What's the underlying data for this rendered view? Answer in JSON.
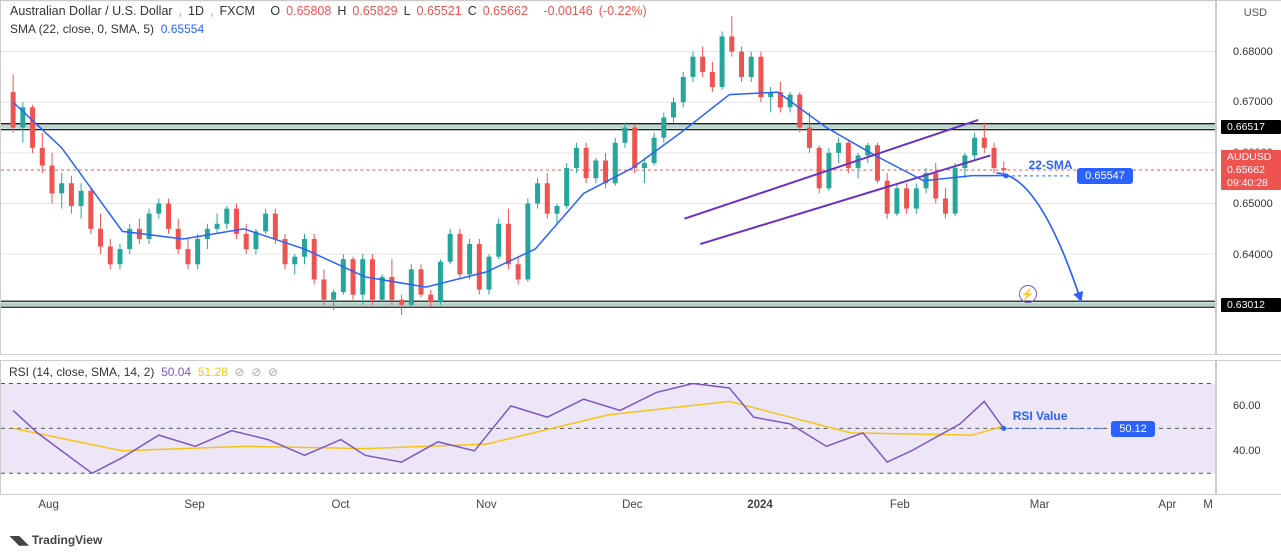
{
  "header": {
    "title": "Australian Dollar / U.S. Dollar",
    "timeframe": "1D",
    "source": "FXCM",
    "open_label": "O",
    "open": "0.65808",
    "high_label": "H",
    "high": "0.65829",
    "low_label": "L",
    "low": "0.65521",
    "close_label": "C",
    "close": "0.65662",
    "change": "-0.00146",
    "change_pct": "(-0.22%)",
    "color_neg": "#ef5350",
    "color_title": "#333333"
  },
  "sma": {
    "label": "SMA (22, close, 0, SMA, 5)",
    "value": "0.65554",
    "color": "#2962ff"
  },
  "rsi": {
    "label": "RSI (14, close, SMA, 14, 2)",
    "val1": "50.04",
    "val2": "51.28",
    "band_fill": "#ece6f7",
    "line_color": "#7e57c2",
    "signal_color": "#f5c518",
    "upper": 70,
    "lower": 30,
    "mid": 50,
    "yticks": [
      40,
      60
    ],
    "anno_text": "RSI Value",
    "anno_badge": "50.12"
  },
  "price_pane": {
    "ymin": 0.62,
    "ymax": 0.69,
    "grid_step": 0.01,
    "yticks": [
      0.64,
      0.65,
      0.66,
      0.67,
      0.68
    ],
    "y_label": "USD",
    "last_price": "0.65662",
    "last_price_color": "#ef5350",
    "ticker_badge": "AUDUSD",
    "ticker_badge_color": "#ef5350",
    "countdown": "09:40:28",
    "countdown_bg": "#ef5350",
    "hlines": [
      {
        "value": 0.66517,
        "label": "0.66517",
        "color": "#3a8f7a"
      },
      {
        "value": 0.63012,
        "label": "0.63012",
        "color": "#3a8f7a"
      }
    ],
    "sma_badge": {
      "value": 0.65547,
      "label": "0.65547",
      "color": "#2962ff",
      "text": "22-SMA"
    },
    "channels": {
      "upper": [
        [
          0.563,
          0.647
        ],
        [
          0.805,
          0.6665
        ]
      ],
      "lower": [
        [
          0.576,
          0.642
        ],
        [
          0.815,
          0.6595
        ]
      ],
      "color": "#6a33c2"
    },
    "arrow": {
      "from": [
        0.82,
        0.656
      ],
      "to": [
        0.89,
        0.6305
      ],
      "color": "#2962ff"
    }
  },
  "x_axis": {
    "ticks": [
      {
        "pos": 0.04,
        "label": "Aug"
      },
      {
        "pos": 0.16,
        "label": "Sep"
      },
      {
        "pos": 0.28,
        "label": "Oct"
      },
      {
        "pos": 0.4,
        "label": "Nov"
      },
      {
        "pos": 0.52,
        "label": "Dec"
      },
      {
        "pos": 0.625,
        "label": "2024",
        "bold": true
      },
      {
        "pos": 0.74,
        "label": "Feb"
      },
      {
        "pos": 0.855,
        "label": "Mar"
      },
      {
        "pos": 0.96,
        "label": "Apr"
      }
    ],
    "end_label": "M"
  },
  "watermark": "TradingView",
  "colors": {
    "up": "#26a69a",
    "down": "#ef5350",
    "grid": "#e6e6e6",
    "sma_line": "#2962ff"
  },
  "candles": [
    {
      "x": 0.01,
      "o": 0.672,
      "h": 0.6755,
      "l": 0.664,
      "c": 0.665
    },
    {
      "x": 0.018,
      "o": 0.665,
      "h": 0.67,
      "l": 0.662,
      "c": 0.669
    },
    {
      "x": 0.026,
      "o": 0.669,
      "h": 0.6695,
      "l": 0.66,
      "c": 0.661
    },
    {
      "x": 0.034,
      "o": 0.661,
      "h": 0.664,
      "l": 0.656,
      "c": 0.6575
    },
    {
      "x": 0.042,
      "o": 0.6575,
      "h": 0.66,
      "l": 0.65,
      "c": 0.652
    },
    {
      "x": 0.05,
      "o": 0.652,
      "h": 0.656,
      "l": 0.649,
      "c": 0.654
    },
    {
      "x": 0.058,
      "o": 0.654,
      "h": 0.6555,
      "l": 0.648,
      "c": 0.6495
    },
    {
      "x": 0.066,
      "o": 0.6495,
      "h": 0.654,
      "l": 0.647,
      "c": 0.6525
    },
    {
      "x": 0.074,
      "o": 0.6525,
      "h": 0.653,
      "l": 0.644,
      "c": 0.645
    },
    {
      "x": 0.082,
      "o": 0.645,
      "h": 0.648,
      "l": 0.64,
      "c": 0.6415
    },
    {
      "x": 0.09,
      "o": 0.6415,
      "h": 0.643,
      "l": 0.637,
      "c": 0.638
    },
    {
      "x": 0.098,
      "o": 0.638,
      "h": 0.642,
      "l": 0.637,
      "c": 0.641
    },
    {
      "x": 0.106,
      "o": 0.641,
      "h": 0.646,
      "l": 0.64,
      "c": 0.645
    },
    {
      "x": 0.114,
      "o": 0.645,
      "h": 0.647,
      "l": 0.642,
      "c": 0.643
    },
    {
      "x": 0.122,
      "o": 0.643,
      "h": 0.649,
      "l": 0.642,
      "c": 0.648
    },
    {
      "x": 0.13,
      "o": 0.648,
      "h": 0.651,
      "l": 0.647,
      "c": 0.65
    },
    {
      "x": 0.138,
      "o": 0.65,
      "h": 0.651,
      "l": 0.644,
      "c": 0.645
    },
    {
      "x": 0.146,
      "o": 0.645,
      "h": 0.647,
      "l": 0.64,
      "c": 0.641
    },
    {
      "x": 0.154,
      "o": 0.641,
      "h": 0.643,
      "l": 0.637,
      "c": 0.638
    },
    {
      "x": 0.162,
      "o": 0.638,
      "h": 0.644,
      "l": 0.637,
      "c": 0.643
    },
    {
      "x": 0.17,
      "o": 0.643,
      "h": 0.646,
      "l": 0.641,
      "c": 0.645
    },
    {
      "x": 0.178,
      "o": 0.645,
      "h": 0.648,
      "l": 0.644,
      "c": 0.646
    },
    {
      "x": 0.186,
      "o": 0.646,
      "h": 0.6495,
      "l": 0.645,
      "c": 0.649
    },
    {
      "x": 0.194,
      "o": 0.649,
      "h": 0.65,
      "l": 0.643,
      "c": 0.644
    },
    {
      "x": 0.202,
      "o": 0.644,
      "h": 0.646,
      "l": 0.64,
      "c": 0.641
    },
    {
      "x": 0.21,
      "o": 0.641,
      "h": 0.645,
      "l": 0.64,
      "c": 0.6445
    },
    {
      "x": 0.218,
      "o": 0.6445,
      "h": 0.649,
      "l": 0.644,
      "c": 0.648
    },
    {
      "x": 0.226,
      "o": 0.648,
      "h": 0.649,
      "l": 0.642,
      "c": 0.643
    },
    {
      "x": 0.234,
      "o": 0.643,
      "h": 0.644,
      "l": 0.637,
      "c": 0.638
    },
    {
      "x": 0.242,
      "o": 0.638,
      "h": 0.64,
      "l": 0.636,
      "c": 0.6395
    },
    {
      "x": 0.25,
      "o": 0.6395,
      "h": 0.644,
      "l": 0.638,
      "c": 0.643
    },
    {
      "x": 0.258,
      "o": 0.643,
      "h": 0.644,
      "l": 0.634,
      "c": 0.635
    },
    {
      "x": 0.266,
      "o": 0.635,
      "h": 0.637,
      "l": 0.63,
      "c": 0.631
    },
    {
      "x": 0.274,
      "o": 0.631,
      "h": 0.633,
      "l": 0.629,
      "c": 0.6325
    },
    {
      "x": 0.282,
      "o": 0.6325,
      "h": 0.64,
      "l": 0.632,
      "c": 0.639
    },
    {
      "x": 0.29,
      "o": 0.639,
      "h": 0.6395,
      "l": 0.631,
      "c": 0.632
    },
    {
      "x": 0.298,
      "o": 0.632,
      "h": 0.64,
      "l": 0.63,
      "c": 0.639
    },
    {
      "x": 0.306,
      "o": 0.639,
      "h": 0.64,
      "l": 0.63,
      "c": 0.631
    },
    {
      "x": 0.314,
      "o": 0.631,
      "h": 0.636,
      "l": 0.6305,
      "c": 0.6355
    },
    {
      "x": 0.322,
      "o": 0.6355,
      "h": 0.639,
      "l": 0.63,
      "c": 0.631
    },
    {
      "x": 0.33,
      "o": 0.631,
      "h": 0.632,
      "l": 0.628,
      "c": 0.63
    },
    {
      "x": 0.338,
      "o": 0.63,
      "h": 0.638,
      "l": 0.6295,
      "c": 0.637
    },
    {
      "x": 0.346,
      "o": 0.637,
      "h": 0.638,
      "l": 0.6315,
      "c": 0.632
    },
    {
      "x": 0.354,
      "o": 0.632,
      "h": 0.633,
      "l": 0.6295,
      "c": 0.6305
    },
    {
      "x": 0.362,
      "o": 0.6305,
      "h": 0.639,
      "l": 0.63,
      "c": 0.6385
    },
    {
      "x": 0.37,
      "o": 0.6385,
      "h": 0.645,
      "l": 0.638,
      "c": 0.644
    },
    {
      "x": 0.378,
      "o": 0.644,
      "h": 0.645,
      "l": 0.635,
      "c": 0.636
    },
    {
      "x": 0.386,
      "o": 0.636,
      "h": 0.643,
      "l": 0.635,
      "c": 0.642
    },
    {
      "x": 0.394,
      "o": 0.642,
      "h": 0.643,
      "l": 0.632,
      "c": 0.633
    },
    {
      "x": 0.402,
      "o": 0.633,
      "h": 0.64,
      "l": 0.632,
      "c": 0.6395
    },
    {
      "x": 0.41,
      "o": 0.6395,
      "h": 0.647,
      "l": 0.639,
      "c": 0.646
    },
    {
      "x": 0.418,
      "o": 0.646,
      "h": 0.649,
      "l": 0.637,
      "c": 0.638
    },
    {
      "x": 0.426,
      "o": 0.638,
      "h": 0.6395,
      "l": 0.634,
      "c": 0.635
    },
    {
      "x": 0.434,
      "o": 0.635,
      "h": 0.651,
      "l": 0.6345,
      "c": 0.65
    },
    {
      "x": 0.442,
      "o": 0.65,
      "h": 0.655,
      "l": 0.649,
      "c": 0.654
    },
    {
      "x": 0.45,
      "o": 0.654,
      "h": 0.656,
      "l": 0.647,
      "c": 0.648
    },
    {
      "x": 0.458,
      "o": 0.648,
      "h": 0.65,
      "l": 0.646,
      "c": 0.6495
    },
    {
      "x": 0.466,
      "o": 0.6495,
      "h": 0.658,
      "l": 0.649,
      "c": 0.657
    },
    {
      "x": 0.474,
      "o": 0.657,
      "h": 0.662,
      "l": 0.656,
      "c": 0.661
    },
    {
      "x": 0.482,
      "o": 0.661,
      "h": 0.662,
      "l": 0.654,
      "c": 0.655
    },
    {
      "x": 0.49,
      "o": 0.655,
      "h": 0.659,
      "l": 0.654,
      "c": 0.6585
    },
    {
      "x": 0.498,
      "o": 0.6585,
      "h": 0.66,
      "l": 0.653,
      "c": 0.654
    },
    {
      "x": 0.506,
      "o": 0.654,
      "h": 0.663,
      "l": 0.6535,
      "c": 0.662
    },
    {
      "x": 0.514,
      "o": 0.662,
      "h": 0.666,
      "l": 0.661,
      "c": 0.665
    },
    {
      "x": 0.522,
      "o": 0.665,
      "h": 0.6655,
      "l": 0.656,
      "c": 0.657
    },
    {
      "x": 0.53,
      "o": 0.657,
      "h": 0.659,
      "l": 0.654,
      "c": 0.658
    },
    {
      "x": 0.538,
      "o": 0.658,
      "h": 0.664,
      "l": 0.6575,
      "c": 0.663
    },
    {
      "x": 0.546,
      "o": 0.663,
      "h": 0.668,
      "l": 0.662,
      "c": 0.667
    },
    {
      "x": 0.554,
      "o": 0.667,
      "h": 0.671,
      "l": 0.666,
      "c": 0.67
    },
    {
      "x": 0.562,
      "o": 0.67,
      "h": 0.676,
      "l": 0.669,
      "c": 0.675
    },
    {
      "x": 0.57,
      "o": 0.675,
      "h": 0.68,
      "l": 0.674,
      "c": 0.679
    },
    {
      "x": 0.578,
      "o": 0.679,
      "h": 0.681,
      "l": 0.675,
      "c": 0.676
    },
    {
      "x": 0.586,
      "o": 0.676,
      "h": 0.678,
      "l": 0.672,
      "c": 0.673
    },
    {
      "x": 0.594,
      "o": 0.673,
      "h": 0.684,
      "l": 0.6725,
      "c": 0.683
    },
    {
      "x": 0.602,
      "o": 0.683,
      "h": 0.687,
      "l": 0.679,
      "c": 0.68
    },
    {
      "x": 0.61,
      "o": 0.68,
      "h": 0.681,
      "l": 0.674,
      "c": 0.675
    },
    {
      "x": 0.618,
      "o": 0.675,
      "h": 0.68,
      "l": 0.674,
      "c": 0.679
    },
    {
      "x": 0.626,
      "o": 0.679,
      "h": 0.68,
      "l": 0.67,
      "c": 0.671
    },
    {
      "x": 0.634,
      "o": 0.671,
      "h": 0.673,
      "l": 0.668,
      "c": 0.672
    },
    {
      "x": 0.642,
      "o": 0.672,
      "h": 0.674,
      "l": 0.668,
      "c": 0.669
    },
    {
      "x": 0.65,
      "o": 0.669,
      "h": 0.672,
      "l": 0.668,
      "c": 0.6715
    },
    {
      "x": 0.658,
      "o": 0.6715,
      "h": 0.672,
      "l": 0.664,
      "c": 0.665
    },
    {
      "x": 0.666,
      "o": 0.665,
      "h": 0.668,
      "l": 0.66,
      "c": 0.661
    },
    {
      "x": 0.674,
      "o": 0.661,
      "h": 0.6615,
      "l": 0.652,
      "c": 0.653
    },
    {
      "x": 0.682,
      "o": 0.653,
      "h": 0.661,
      "l": 0.6525,
      "c": 0.66
    },
    {
      "x": 0.69,
      "o": 0.66,
      "h": 0.663,
      "l": 0.658,
      "c": 0.662
    },
    {
      "x": 0.698,
      "o": 0.662,
      "h": 0.6625,
      "l": 0.656,
      "c": 0.657
    },
    {
      "x": 0.706,
      "o": 0.657,
      "h": 0.66,
      "l": 0.655,
      "c": 0.6595
    },
    {
      "x": 0.714,
      "o": 0.6595,
      "h": 0.662,
      "l": 0.658,
      "c": 0.6615
    },
    {
      "x": 0.722,
      "o": 0.6615,
      "h": 0.662,
      "l": 0.654,
      "c": 0.6545
    },
    {
      "x": 0.73,
      "o": 0.6545,
      "h": 0.656,
      "l": 0.647,
      "c": 0.648
    },
    {
      "x": 0.738,
      "o": 0.648,
      "h": 0.654,
      "l": 0.6475,
      "c": 0.653
    },
    {
      "x": 0.746,
      "o": 0.653,
      "h": 0.654,
      "l": 0.648,
      "c": 0.649
    },
    {
      "x": 0.754,
      "o": 0.649,
      "h": 0.654,
      "l": 0.648,
      "c": 0.653
    },
    {
      "x": 0.762,
      "o": 0.653,
      "h": 0.657,
      "l": 0.652,
      "c": 0.656
    },
    {
      "x": 0.77,
      "o": 0.656,
      "h": 0.658,
      "l": 0.65,
      "c": 0.651
    },
    {
      "x": 0.778,
      "o": 0.651,
      "h": 0.653,
      "l": 0.647,
      "c": 0.648
    },
    {
      "x": 0.786,
      "o": 0.648,
      "h": 0.658,
      "l": 0.6475,
      "c": 0.657
    },
    {
      "x": 0.794,
      "o": 0.657,
      "h": 0.66,
      "l": 0.655,
      "c": 0.6595
    },
    {
      "x": 0.802,
      "o": 0.6595,
      "h": 0.664,
      "l": 0.6585,
      "c": 0.663
    },
    {
      "x": 0.81,
      "o": 0.663,
      "h": 0.666,
      "l": 0.66,
      "c": 0.661
    },
    {
      "x": 0.818,
      "o": 0.661,
      "h": 0.662,
      "l": 0.656,
      "c": 0.657
    },
    {
      "x": 0.826,
      "o": 0.657,
      "h": 0.6583,
      "l": 0.6552,
      "c": 0.6566
    }
  ],
  "sma_path": [
    [
      0.01,
      0.67
    ],
    [
      0.05,
      0.661
    ],
    [
      0.1,
      0.6445
    ],
    [
      0.15,
      0.643
    ],
    [
      0.2,
      0.645
    ],
    [
      0.25,
      0.641
    ],
    [
      0.3,
      0.6355
    ],
    [
      0.35,
      0.6335
    ],
    [
      0.4,
      0.6365
    ],
    [
      0.44,
      0.641
    ],
    [
      0.48,
      0.652
    ],
    [
      0.52,
      0.657
    ],
    [
      0.56,
      0.664
    ],
    [
      0.6,
      0.6715
    ],
    [
      0.64,
      0.672
    ],
    [
      0.68,
      0.665
    ],
    [
      0.72,
      0.6595
    ],
    [
      0.76,
      0.6545
    ],
    [
      0.8,
      0.6555
    ],
    [
      0.826,
      0.6555
    ]
  ],
  "rsi_path": [
    [
      0.01,
      58
    ],
    [
      0.03,
      48
    ],
    [
      0.05,
      40
    ],
    [
      0.075,
      30
    ],
    [
      0.1,
      37
    ],
    [
      0.13,
      47
    ],
    [
      0.16,
      42
    ],
    [
      0.19,
      49
    ],
    [
      0.22,
      45
    ],
    [
      0.25,
      38
    ],
    [
      0.28,
      45
    ],
    [
      0.3,
      38
    ],
    [
      0.33,
      35
    ],
    [
      0.36,
      44
    ],
    [
      0.39,
      40
    ],
    [
      0.42,
      60
    ],
    [
      0.45,
      55
    ],
    [
      0.48,
      63
    ],
    [
      0.51,
      58
    ],
    [
      0.54,
      66
    ],
    [
      0.57,
      70
    ],
    [
      0.6,
      68
    ],
    [
      0.62,
      55
    ],
    [
      0.65,
      52
    ],
    [
      0.68,
      42
    ],
    [
      0.71,
      48
    ],
    [
      0.73,
      35
    ],
    [
      0.75,
      40
    ],
    [
      0.77,
      46
    ],
    [
      0.79,
      52
    ],
    [
      0.81,
      62
    ],
    [
      0.826,
      50
    ]
  ],
  "rsi_signal": [
    [
      0.01,
      50
    ],
    [
      0.1,
      40
    ],
    [
      0.2,
      42
    ],
    [
      0.3,
      41
    ],
    [
      0.4,
      43
    ],
    [
      0.5,
      56
    ],
    [
      0.6,
      62
    ],
    [
      0.7,
      48
    ],
    [
      0.8,
      47
    ],
    [
      0.826,
      51
    ]
  ]
}
